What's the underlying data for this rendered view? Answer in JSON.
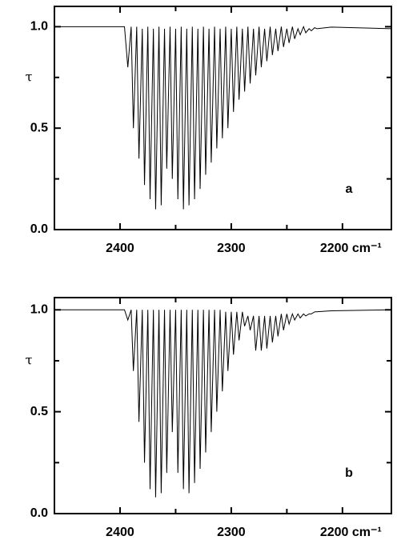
{
  "chart_data": [
    {
      "type": "line",
      "ylabel": "τ",
      "annotation": "a",
      "xlim": [
        2459,
        2156
      ],
      "ylim": [
        0,
        1.1
      ],
      "xticks": [
        2400,
        2300,
        {
          "value": 2200,
          "label": "2200 cm⁻¹"
        }
      ],
      "xminor": [
        2350,
        2250
      ],
      "yticks": [
        {
          "value": 0,
          "label": "0.0"
        },
        0.5,
        {
          "value": 1,
          "label": "1.0"
        }
      ],
      "yminor": [
        0.25,
        0.75
      ],
      "x": [
        2459,
        2396,
        2393,
        2390,
        2388,
        2385,
        2383,
        2380,
        2378,
        2375,
        2373,
        2370,
        2368,
        2365,
        2363,
        2360,
        2358,
        2355,
        2353,
        2350,
        2348,
        2345,
        2343,
        2340,
        2338,
        2335,
        2333,
        2330,
        2328,
        2325,
        2323,
        2320,
        2318,
        2315,
        2313,
        2310,
        2308,
        2305,
        2303,
        2300,
        2298,
        2295,
        2293,
        2290,
        2288,
        2285,
        2283,
        2280,
        2278,
        2275,
        2273,
        2270,
        2268,
        2265,
        2263,
        2260,
        2258,
        2255,
        2253,
        2250,
        2248,
        2245,
        2243,
        2240,
        2238,
        2235,
        2233,
        2230,
        2228,
        2225,
        2223,
        2210,
        2156
      ],
      "series": [
        {
          "color": "#000000",
          "values": [
            1.0,
            1.0,
            0.8,
            1.0,
            0.5,
            1.0,
            0.35,
            0.99,
            0.22,
            1.0,
            0.15,
            0.99,
            0.1,
            1.0,
            0.12,
            0.99,
            0.3,
            1.0,
            0.25,
            0.99,
            0.15,
            1.0,
            0.1,
            0.99,
            0.12,
            1.0,
            0.15,
            0.99,
            0.2,
            1.0,
            0.27,
            0.99,
            0.33,
            1.0,
            0.4,
            0.99,
            0.45,
            1.0,
            0.5,
            0.99,
            0.58,
            1.0,
            0.64,
            0.99,
            0.68,
            1.0,
            0.72,
            0.99,
            0.76,
            1.0,
            0.8,
            0.99,
            0.83,
            1.0,
            0.86,
            0.99,
            0.88,
            1.0,
            0.9,
            0.99,
            0.92,
            1.0,
            0.94,
            0.99,
            0.96,
            1.0,
            0.97,
            0.99,
            0.98,
            0.995,
            0.99,
            0.998,
            0.99
          ]
        }
      ]
    },
    {
      "type": "line",
      "ylabel": "τ",
      "annotation": "b",
      "xlim": [
        2459,
        2156
      ],
      "ylim": [
        0,
        1.06
      ],
      "xticks": [
        2400,
        2300,
        {
          "value": 2200,
          "label": "2200 cm⁻¹"
        }
      ],
      "xminor": [
        2350,
        2250
      ],
      "yticks": [
        {
          "value": 0,
          "label": "0.0"
        },
        0.5,
        {
          "value": 1,
          "label": "1.0"
        }
      ],
      "yminor": [
        0.25,
        0.75
      ],
      "x": [
        2459,
        2396,
        2393,
        2390,
        2388,
        2385,
        2383,
        2380,
        2378,
        2375,
        2373,
        2370,
        2368,
        2365,
        2363,
        2360,
        2358,
        2355,
        2353,
        2350,
        2348,
        2345,
        2343,
        2340,
        2338,
        2335,
        2333,
        2330,
        2328,
        2325,
        2323,
        2320,
        2318,
        2315,
        2313,
        2310,
        2308,
        2305,
        2303,
        2300,
        2298,
        2295,
        2293,
        2290,
        2288,
        2285,
        2283,
        2280,
        2278,
        2275,
        2273,
        2270,
        2268,
        2265,
        2263,
        2260,
        2258,
        2255,
        2253,
        2250,
        2248,
        2245,
        2243,
        2240,
        2238,
        2235,
        2233,
        2230,
        2228,
        2225,
        2210,
        2156
      ],
      "series": [
        {
          "color": "#000000",
          "values": [
            1.0,
            1.0,
            0.95,
            1.0,
            0.7,
            1.0,
            0.45,
            1.0,
            0.25,
            1.0,
            0.12,
            1.0,
            0.08,
            1.0,
            0.1,
            1.0,
            0.2,
            1.0,
            0.4,
            1.0,
            0.2,
            1.0,
            0.12,
            1.0,
            0.1,
            1.0,
            0.15,
            1.0,
            0.22,
            1.0,
            0.3,
            1.0,
            0.4,
            1.0,
            0.5,
            1.0,
            0.6,
            0.99,
            0.7,
            0.99,
            0.78,
            0.99,
            0.85,
            0.99,
            0.92,
            0.97,
            0.9,
            0.97,
            0.8,
            0.97,
            0.8,
            0.97,
            0.81,
            0.97,
            0.84,
            0.97,
            0.87,
            0.98,
            0.9,
            0.98,
            0.93,
            0.98,
            0.95,
            0.98,
            0.96,
            0.98,
            0.97,
            0.98,
            0.98,
            0.99,
            0.995,
            1.0
          ]
        }
      ]
    }
  ]
}
